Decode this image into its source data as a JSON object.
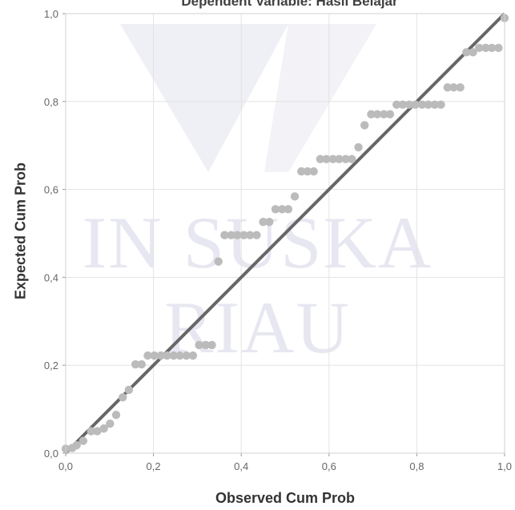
{
  "chart_data": {
    "type": "scatter",
    "title": "Dependent Variable: Hasil Belajar",
    "xlabel": "Observed Cum Prob",
    "ylabel": "Expected Cum Prob",
    "xlim": [
      0,
      1
    ],
    "ylim": [
      0,
      1
    ],
    "xticks": [
      "0,0",
      "0,2",
      "0,4",
      "0,6",
      "0,8",
      "1,0"
    ],
    "yticks": [
      "0,0",
      "0,2",
      "0,4",
      "0,6",
      "0,8",
      "1,0"
    ],
    "grid": true,
    "reference_line": {
      "from": [
        0,
        0
      ],
      "to": [
        1,
        1
      ]
    },
    "points": [
      [
        0.0,
        0.01
      ],
      [
        0.015,
        0.012
      ],
      [
        0.025,
        0.018
      ],
      [
        0.04,
        0.028
      ],
      [
        0.058,
        0.05
      ],
      [
        0.072,
        0.05
      ],
      [
        0.087,
        0.056
      ],
      [
        0.101,
        0.067
      ],
      [
        0.115,
        0.087
      ],
      [
        0.13,
        0.127
      ],
      [
        0.144,
        0.144
      ],
      [
        0.159,
        0.202
      ],
      [
        0.173,
        0.202
      ],
      [
        0.187,
        0.222
      ],
      [
        0.202,
        0.222
      ],
      [
        0.217,
        0.222
      ],
      [
        0.231,
        0.222
      ],
      [
        0.246,
        0.222
      ],
      [
        0.26,
        0.222
      ],
      [
        0.275,
        0.222
      ],
      [
        0.29,
        0.222
      ],
      [
        0.304,
        0.246
      ],
      [
        0.319,
        0.246
      ],
      [
        0.333,
        0.246
      ],
      [
        0.348,
        0.436
      ],
      [
        0.362,
        0.496
      ],
      [
        0.377,
        0.496
      ],
      [
        0.391,
        0.496
      ],
      [
        0.406,
        0.496
      ],
      [
        0.42,
        0.496
      ],
      [
        0.435,
        0.496
      ],
      [
        0.45,
        0.526
      ],
      [
        0.464,
        0.526
      ],
      [
        0.478,
        0.555
      ],
      [
        0.493,
        0.555
      ],
      [
        0.507,
        0.555
      ],
      [
        0.522,
        0.584
      ],
      [
        0.537,
        0.641
      ],
      [
        0.551,
        0.641
      ],
      [
        0.565,
        0.641
      ],
      [
        0.58,
        0.669
      ],
      [
        0.594,
        0.669
      ],
      [
        0.609,
        0.669
      ],
      [
        0.623,
        0.669
      ],
      [
        0.638,
        0.669
      ],
      [
        0.652,
        0.669
      ],
      [
        0.667,
        0.696
      ],
      [
        0.681,
        0.746
      ],
      [
        0.696,
        0.771
      ],
      [
        0.71,
        0.771
      ],
      [
        0.725,
        0.771
      ],
      [
        0.739,
        0.771
      ],
      [
        0.754,
        0.793
      ],
      [
        0.768,
        0.793
      ],
      [
        0.783,
        0.793
      ],
      [
        0.797,
        0.793
      ],
      [
        0.812,
        0.793
      ],
      [
        0.826,
        0.793
      ],
      [
        0.841,
        0.793
      ],
      [
        0.855,
        0.793
      ],
      [
        0.87,
        0.832
      ],
      [
        0.884,
        0.832
      ],
      [
        0.899,
        0.832
      ],
      [
        0.913,
        0.912
      ],
      [
        0.928,
        0.912
      ],
      [
        0.942,
        0.922
      ],
      [
        0.957,
        0.922
      ],
      [
        0.971,
        0.922
      ],
      [
        0.986,
        0.922
      ],
      [
        1.0,
        0.99
      ]
    ],
    "colors": {
      "points": "#bbbbbb",
      "line": "#666666",
      "grid": "#e3e3e3",
      "axis": "#9a9a9a",
      "text": "#666666"
    }
  },
  "watermark": {
    "text": "IN SUSKA RIAU",
    "color": "#e7e7f1"
  }
}
